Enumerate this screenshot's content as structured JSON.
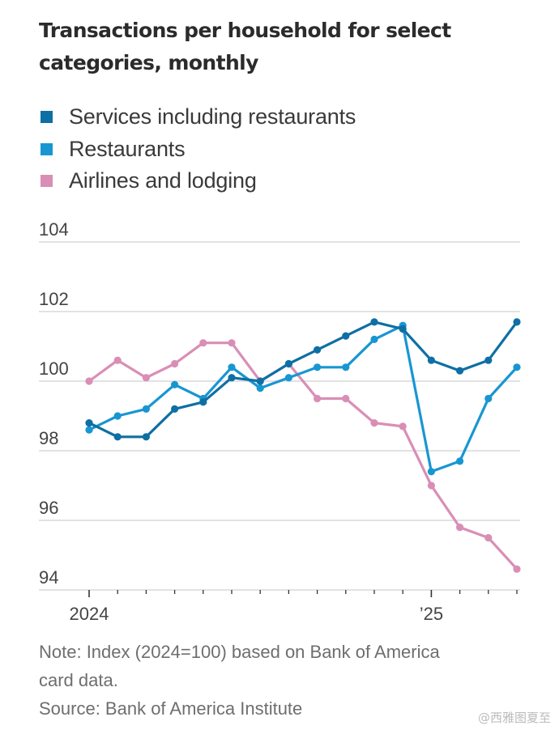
{
  "chart_data": {
    "type": "line",
    "title": "Transactions per household for select categories, monthly",
    "xlabel": "",
    "ylabel": "",
    "x": [
      "Jan 2024",
      "Feb 2024",
      "Mar 2024",
      "Apr 2024",
      "May 2024",
      "Jun 2024",
      "Jul 2024",
      "Aug 2024",
      "Sep 2024",
      "Oct 2024",
      "Nov 2024",
      "Dec 2024",
      "Jan 2025",
      "Feb 2025",
      "Mar 2025",
      "Apr 2025"
    ],
    "x_tick_labels": [
      {
        "index": 0,
        "label": "2024"
      },
      {
        "index": 12,
        "label": "’25"
      }
    ],
    "ylim": [
      94,
      104
    ],
    "yticks": [
      104,
      102,
      100,
      98,
      96,
      94
    ],
    "grid": true,
    "legend_position": "top-left",
    "series": [
      {
        "name": "Services including restaurants",
        "color": "#0e6fa4",
        "values": [
          98.8,
          98.4,
          98.4,
          99.2,
          99.4,
          100.1,
          100.0,
          100.5,
          100.9,
          101.3,
          101.7,
          101.5,
          100.6,
          100.3,
          100.6,
          101.7
        ]
      },
      {
        "name": "Restaurants",
        "color": "#1896d2",
        "values": [
          98.6,
          99.0,
          99.2,
          99.9,
          99.5,
          100.4,
          99.8,
          100.1,
          100.4,
          100.4,
          101.2,
          101.6,
          97.4,
          97.7,
          99.5,
          100.4
        ]
      },
      {
        "name": "Airlines and lodging",
        "color": "#d98eb6",
        "values": [
          100.0,
          100.6,
          100.1,
          100.5,
          101.1,
          101.1,
          100.0,
          100.5,
          99.5,
          99.5,
          98.8,
          98.7,
          97.0,
          95.8,
          95.5,
          94.6
        ]
      }
    ]
  },
  "title": "Transactions per household for select categories, monthly",
  "title_line1": "Transactions per household for select",
  "title_line2": "categories, monthly",
  "legend": [
    {
      "label": "Services including restaurants",
      "color": "#0e6fa4"
    },
    {
      "label": "Restaurants",
      "color": "#1896d2"
    },
    {
      "label": "Airlines and lodging",
      "color": "#d98eb6"
    }
  ],
  "y_tick_labels": [
    "104",
    "102",
    "100",
    "98",
    "96",
    "94"
  ],
  "note_line1": "Note: Index (2024=100) based on Bank of America",
  "note_line2": "card data.",
  "source": "Source: Bank of America Institute",
  "watermark": "@西雅图夏至"
}
